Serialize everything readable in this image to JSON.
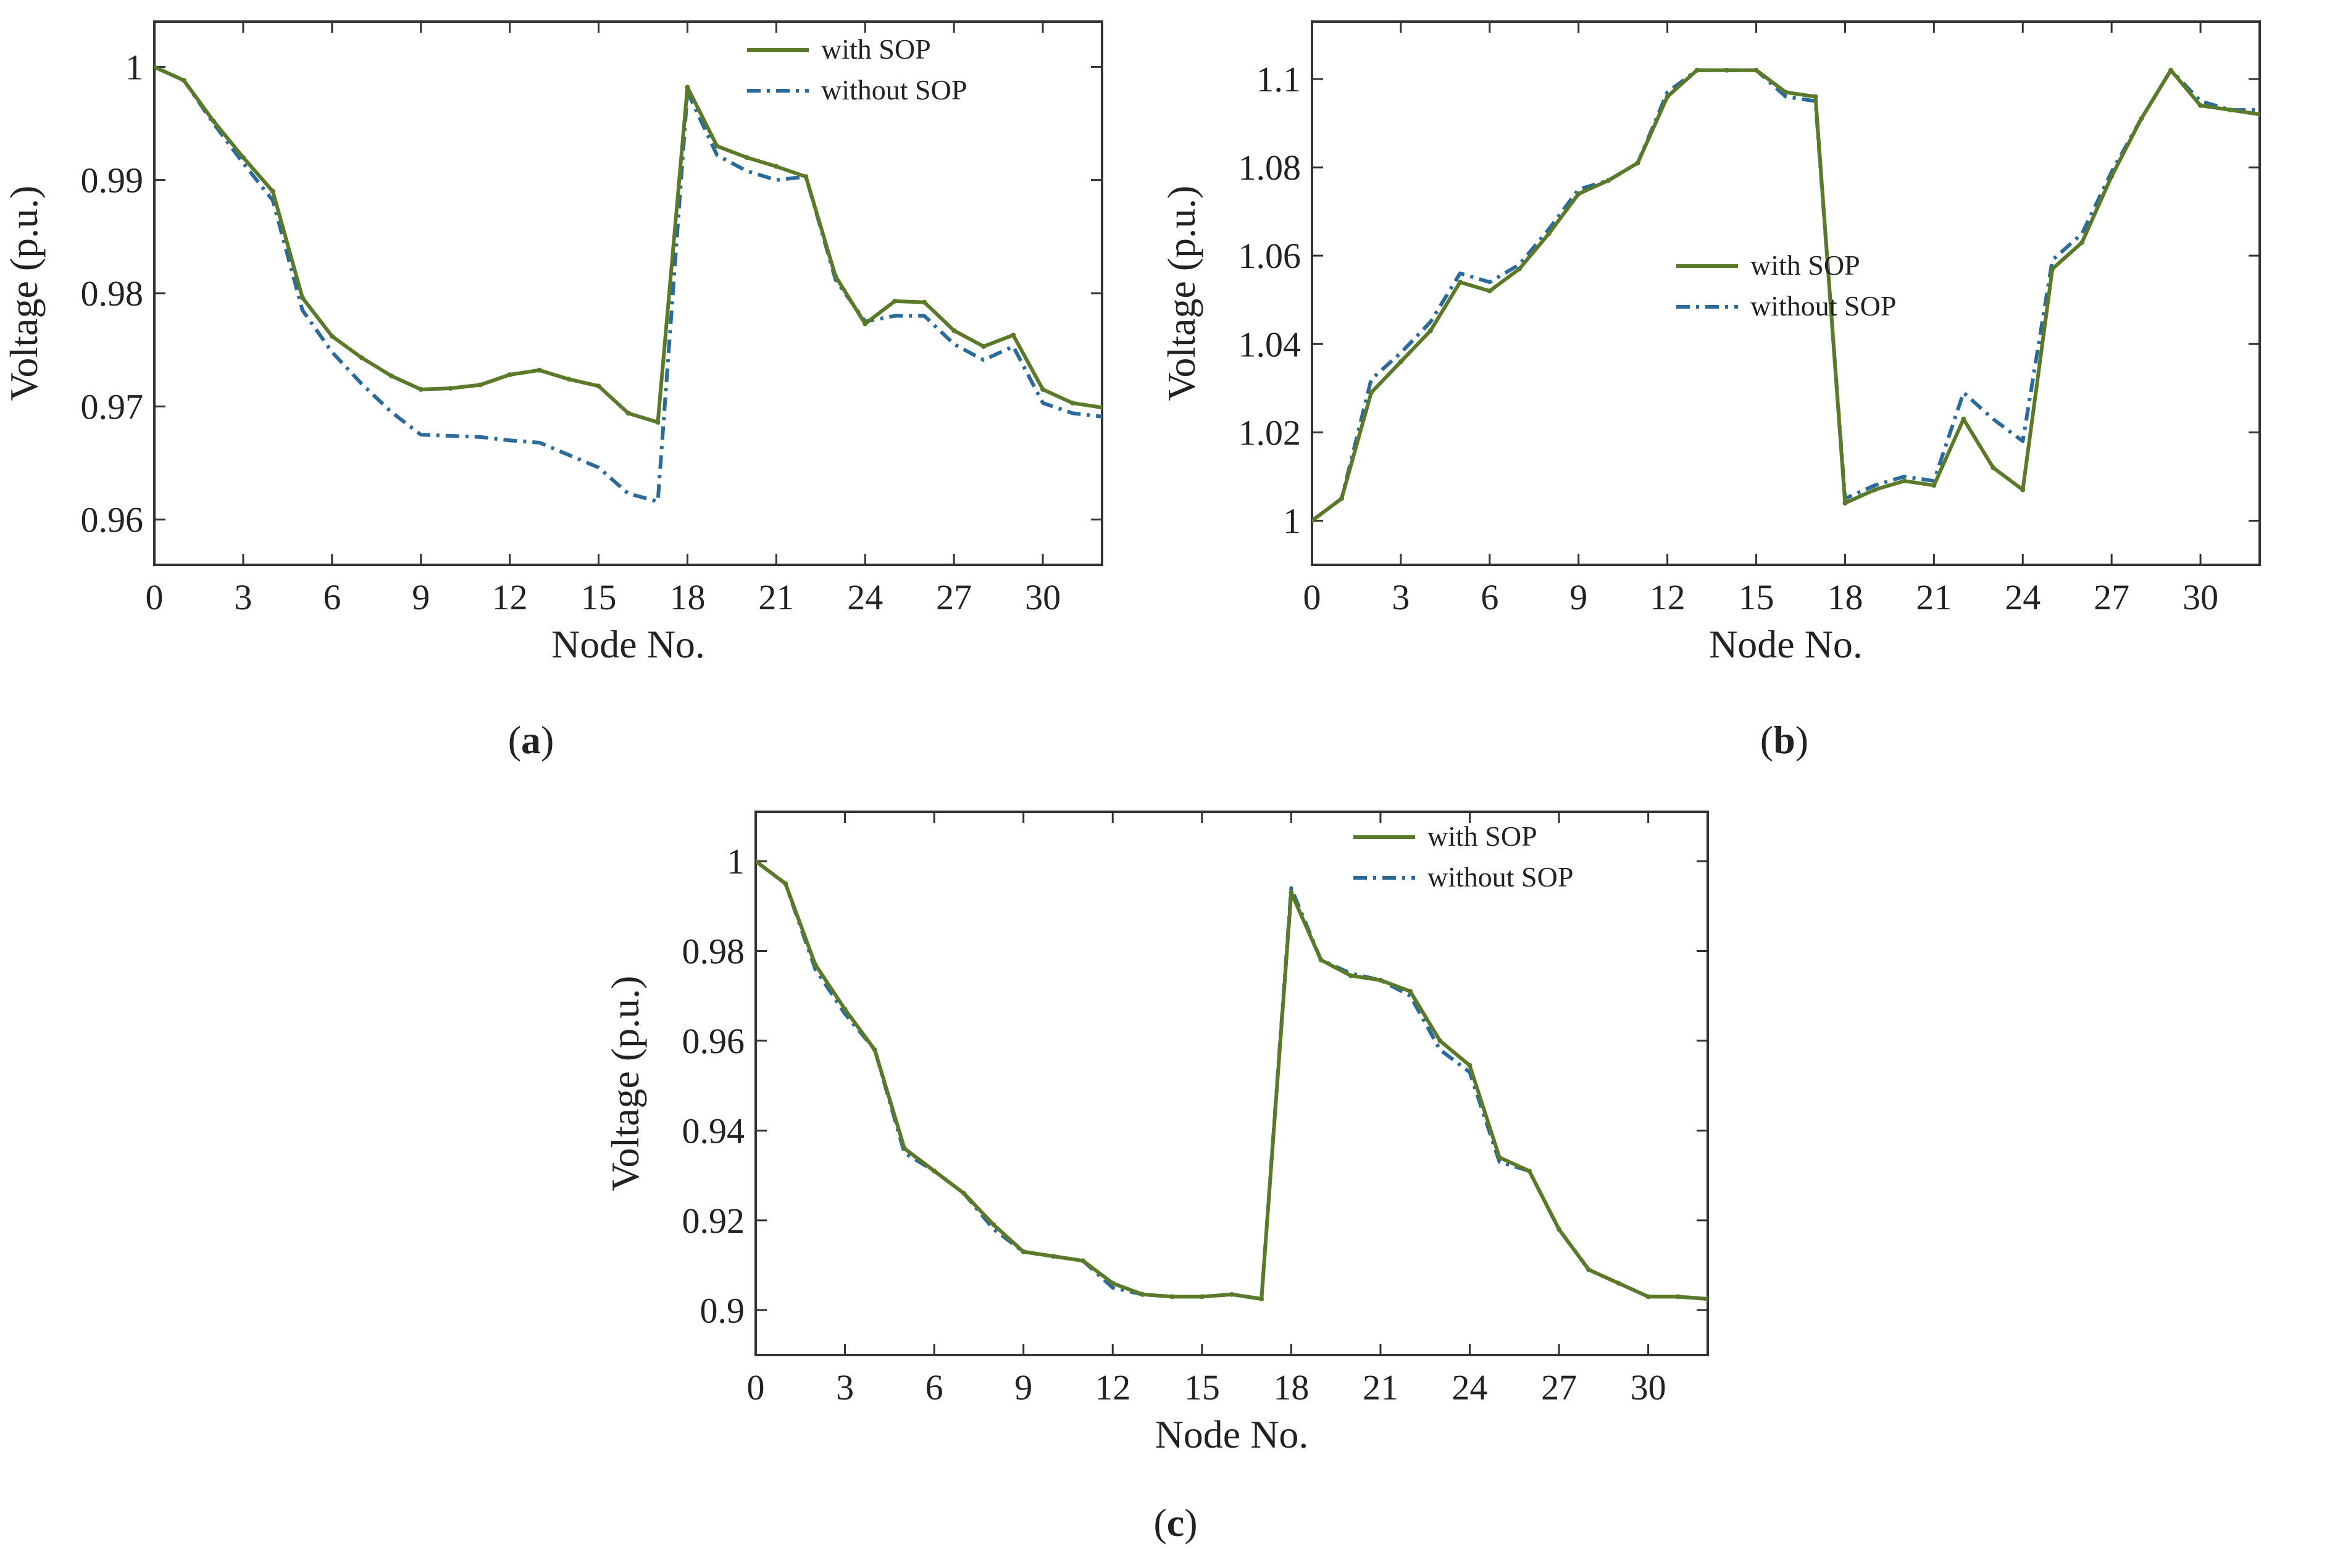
{
  "colors": {
    "with_sop": "#5a7a2a",
    "without_sop": "#2a6b9c",
    "axis": "#333333"
  },
  "chart_data": [
    {
      "id": "a",
      "type": "line",
      "caption_open": "(",
      "caption_letter": "a",
      "caption_close": ")",
      "xlabel": "Node No.",
      "ylabel": "Voltage (p.u.)",
      "xlim": [
        0,
        32
      ],
      "ylim": [
        0.956,
        1.004
      ],
      "xticks": [
        0,
        3,
        6,
        9,
        12,
        15,
        18,
        21,
        24,
        27,
        30
      ],
      "xtick_labels": [
        "0",
        "3",
        "6",
        "9",
        "12",
        "15",
        "18",
        "21",
        "24",
        "27",
        "30"
      ],
      "yticks": [
        0.96,
        0.97,
        0.98,
        0.99,
        1.0
      ],
      "ytick_labels": [
        "0.96",
        "0.97",
        "0.98",
        "0.99",
        "1"
      ],
      "legend_position": "top-right",
      "x": [
        0,
        1,
        2,
        3,
        4,
        5,
        6,
        7,
        8,
        9,
        10,
        11,
        12,
        13,
        14,
        15,
        16,
        17,
        18,
        19,
        20,
        21,
        22,
        23,
        24,
        25,
        26,
        27,
        28,
        29,
        30,
        31,
        32
      ],
      "series": [
        {
          "name": "with SOP",
          "key": "with_sop",
          "style": "solid",
          "values": [
            1.0,
            0.9988,
            0.9952,
            0.992,
            0.989,
            0.9796,
            0.9762,
            0.9743,
            0.9727,
            0.9715,
            0.9716,
            0.9719,
            0.9728,
            0.9732,
            0.9724,
            0.9718,
            0.9694,
            0.9686,
            0.9982,
            0.993,
            0.992,
            0.9912,
            0.9903,
            0.9815,
            0.9773,
            0.9793,
            0.9792,
            0.9767,
            0.9753,
            0.9763,
            0.9715,
            0.9703,
            0.9699
          ]
        },
        {
          "name": "without SOP",
          "key": "without_sop",
          "style": "dashdot",
          "values": [
            1.0,
            0.9988,
            0.995,
            0.9915,
            0.9882,
            0.9785,
            0.9748,
            0.972,
            0.9695,
            0.9675,
            0.9674,
            0.9673,
            0.967,
            0.9668,
            0.9657,
            0.9646,
            0.9623,
            0.9616,
            0.9978,
            0.9922,
            0.9908,
            0.99,
            0.9903,
            0.9812,
            0.9775,
            0.978,
            0.978,
            0.9755,
            0.9741,
            0.9753,
            0.9703,
            0.9694,
            0.9691
          ]
        }
      ]
    },
    {
      "id": "b",
      "type": "line",
      "caption_open": "(",
      "caption_letter": "b",
      "caption_close": ")",
      "xlabel": "Node No.",
      "ylabel": "Voltage (p.u.)",
      "xlim": [
        0,
        32
      ],
      "ylim": [
        0.99,
        1.113
      ],
      "xticks": [
        0,
        3,
        6,
        9,
        12,
        15,
        18,
        21,
        24,
        27,
        30
      ],
      "xtick_labels": [
        "0",
        "3",
        "6",
        "9",
        "12",
        "15",
        "18",
        "21",
        "24",
        "27",
        "30"
      ],
      "yticks": [
        1.0,
        1.02,
        1.04,
        1.06,
        1.08,
        1.1
      ],
      "ytick_labels": [
        "1",
        "1.02",
        "1.04",
        "1.06",
        "1.08",
        "1.1"
      ],
      "legend_position": "center",
      "x": [
        0,
        1,
        2,
        3,
        4,
        5,
        6,
        7,
        8,
        9,
        10,
        11,
        12,
        13,
        14,
        15,
        16,
        17,
        18,
        19,
        20,
        21,
        22,
        23,
        24,
        25,
        26,
        27,
        28,
        29,
        30,
        31,
        32
      ],
      "series": [
        {
          "name": "with SOP",
          "key": "with_sop",
          "style": "solid",
          "values": [
            1.0,
            1.005,
            1.029,
            1.036,
            1.043,
            1.054,
            1.052,
            1.057,
            1.065,
            1.074,
            1.077,
            1.081,
            1.096,
            1.102,
            1.102,
            1.102,
            1.097,
            1.096,
            1.004,
            1.007,
            1.009,
            1.008,
            1.023,
            1.012,
            1.007,
            1.057,
            1.063,
            1.078,
            1.091,
            1.102,
            1.094,
            1.093,
            1.092
          ]
        },
        {
          "name": "without SOP",
          "key": "without_sop",
          "style": "dashdot",
          "values": [
            1.0,
            1.005,
            1.032,
            1.038,
            1.045,
            1.056,
            1.054,
            1.058,
            1.066,
            1.075,
            1.077,
            1.081,
            1.097,
            1.102,
            1.102,
            1.102,
            1.096,
            1.095,
            1.005,
            1.008,
            1.01,
            1.009,
            1.029,
            1.023,
            1.018,
            1.059,
            1.065,
            1.079,
            1.091,
            1.102,
            1.095,
            1.093,
            1.093
          ]
        }
      ]
    },
    {
      "id": "c",
      "type": "line",
      "caption_open": "(",
      "caption_letter": "c",
      "caption_close": ")",
      "xlabel": "Node No.",
      "ylabel": "Voltage (p.u.)",
      "xlim": [
        0,
        32
      ],
      "ylim": [
        0.89,
        1.011
      ],
      "xticks": [
        0,
        3,
        6,
        9,
        12,
        15,
        18,
        21,
        24,
        27,
        30
      ],
      "xtick_labels": [
        "0",
        "3",
        "6",
        "9",
        "12",
        "15",
        "18",
        "21",
        "24",
        "27",
        "30"
      ],
      "yticks": [
        0.9,
        0.92,
        0.94,
        0.96,
        0.98,
        1.0
      ],
      "ytick_labels": [
        "0.9",
        "0.92",
        "0.94",
        "0.96",
        "0.98",
        "1"
      ],
      "legend_position": "top-right",
      "x": [
        0,
        1,
        2,
        3,
        4,
        5,
        6,
        7,
        8,
        9,
        10,
        11,
        12,
        13,
        14,
        15,
        16,
        17,
        18,
        19,
        20,
        21,
        22,
        23,
        24,
        25,
        26,
        27,
        28,
        29,
        30,
        31,
        32
      ],
      "series": [
        {
          "name": "with SOP",
          "key": "with_sop",
          "style": "solid",
          "values": [
            1.0,
            0.995,
            0.977,
            0.967,
            0.958,
            0.936,
            0.931,
            0.926,
            0.919,
            0.913,
            0.912,
            0.911,
            0.906,
            0.9035,
            0.903,
            0.903,
            0.9035,
            0.9025,
            0.993,
            0.978,
            0.9745,
            0.9735,
            0.971,
            0.96,
            0.9545,
            0.934,
            0.931,
            0.918,
            0.909,
            0.906,
            0.903,
            0.903,
            0.9025
          ]
        },
        {
          "name": "without SOP",
          "key": "without_sop",
          "style": "dashdot",
          "values": [
            1.0,
            0.995,
            0.976,
            0.966,
            0.958,
            0.935,
            0.931,
            0.926,
            0.918,
            0.913,
            0.912,
            0.911,
            0.905,
            0.9035,
            0.903,
            0.903,
            0.9035,
            0.9025,
            0.994,
            0.978,
            0.975,
            0.9735,
            0.97,
            0.958,
            0.953,
            0.933,
            0.931,
            0.918,
            0.909,
            0.906,
            0.903,
            0.903,
            0.9025
          ]
        }
      ]
    }
  ]
}
